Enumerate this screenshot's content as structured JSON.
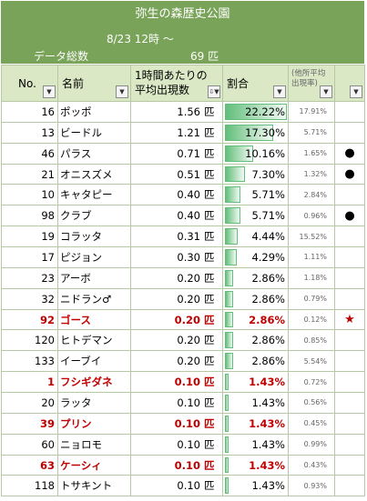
{
  "header": {
    "title": "弥生の森歴史公園",
    "date_line": "8/23 12時 ～",
    "total_label": "データ総数",
    "total_value": "69 匹"
  },
  "columns": {
    "no": "No.",
    "name": "名前",
    "avg_line1": "1時間あたりの",
    "avg_line2": "平均出現数",
    "ratio": "割合",
    "other_line1": "(他所平均",
    "other_line2": "出現率)"
  },
  "rows": [
    {
      "no": "16",
      "name": "ポッポ",
      "avg": "1.56",
      "unit": "匹",
      "ratio": "22.22%",
      "ratio_value": 22.22,
      "other": "17.91%",
      "mark": "",
      "highlight": false
    },
    {
      "no": "13",
      "name": "ビードル",
      "avg": "1.21",
      "unit": "匹",
      "ratio": "17.30%",
      "ratio_value": 17.3,
      "other": "5.71%",
      "mark": "",
      "highlight": false
    },
    {
      "no": "46",
      "name": "パラス",
      "avg": "0.71",
      "unit": "匹",
      "ratio": "10.16%",
      "ratio_value": 10.16,
      "other": "1.65%",
      "mark": "●",
      "highlight": false
    },
    {
      "no": "21",
      "name": "オニスズメ",
      "avg": "0.51",
      "unit": "匹",
      "ratio": "7.30%",
      "ratio_value": 7.3,
      "other": "1.32%",
      "mark": "●",
      "highlight": false
    },
    {
      "no": "10",
      "name": "キャタピー",
      "avg": "0.40",
      "unit": "匹",
      "ratio": "5.71%",
      "ratio_value": 5.71,
      "other": "2.84%",
      "mark": "",
      "highlight": false
    },
    {
      "no": "98",
      "name": "クラブ",
      "avg": "0.40",
      "unit": "匹",
      "ratio": "5.71%",
      "ratio_value": 5.71,
      "other": "0.96%",
      "mark": "●",
      "highlight": false
    },
    {
      "no": "19",
      "name": "コラッタ",
      "avg": "0.31",
      "unit": "匹",
      "ratio": "4.44%",
      "ratio_value": 4.44,
      "other": "15.52%",
      "mark": "",
      "highlight": false
    },
    {
      "no": "17",
      "name": "ピジョン",
      "avg": "0.30",
      "unit": "匹",
      "ratio": "4.29%",
      "ratio_value": 4.29,
      "other": "1.11%",
      "mark": "",
      "highlight": false
    },
    {
      "no": "23",
      "name": "アーボ",
      "avg": "0.20",
      "unit": "匹",
      "ratio": "2.86%",
      "ratio_value": 2.86,
      "other": "1.18%",
      "mark": "",
      "highlight": false
    },
    {
      "no": "32",
      "name": "ニドラン♂",
      "avg": "0.20",
      "unit": "匹",
      "ratio": "2.86%",
      "ratio_value": 2.86,
      "other": "0.79%",
      "mark": "",
      "highlight": false
    },
    {
      "no": "92",
      "name": "ゴース",
      "avg": "0.20",
      "unit": "匹",
      "ratio": "2.86%",
      "ratio_value": 2.86,
      "other": "0.12%",
      "mark": "★",
      "highlight": true
    },
    {
      "no": "120",
      "name": "ヒトデマン",
      "avg": "0.20",
      "unit": "匹",
      "ratio": "2.86%",
      "ratio_value": 2.86,
      "other": "0.85%",
      "mark": "",
      "highlight": false
    },
    {
      "no": "133",
      "name": "イーブイ",
      "avg": "0.20",
      "unit": "匹",
      "ratio": "2.86%",
      "ratio_value": 2.86,
      "other": "5.54%",
      "mark": "",
      "highlight": false
    },
    {
      "no": "1",
      "name": "フシギダネ",
      "avg": "0.10",
      "unit": "匹",
      "ratio": "1.43%",
      "ratio_value": 1.43,
      "other": "0.72%",
      "mark": "",
      "highlight": true
    },
    {
      "no": "20",
      "name": "ラッタ",
      "avg": "0.10",
      "unit": "匹",
      "ratio": "1.43%",
      "ratio_value": 1.43,
      "other": "0.56%",
      "mark": "",
      "highlight": false
    },
    {
      "no": "39",
      "name": "プリン",
      "avg": "0.10",
      "unit": "匹",
      "ratio": "1.43%",
      "ratio_value": 1.43,
      "other": "0.45%",
      "mark": "",
      "highlight": true
    },
    {
      "no": "60",
      "name": "ニョロモ",
      "avg": "0.10",
      "unit": "匹",
      "ratio": "1.43%",
      "ratio_value": 1.43,
      "other": "0.99%",
      "mark": "",
      "highlight": false
    },
    {
      "no": "63",
      "name": "ケーシィ",
      "avg": "0.10",
      "unit": "匹",
      "ratio": "1.43%",
      "ratio_value": 1.43,
      "other": "0.43%",
      "mark": "",
      "highlight": true
    },
    {
      "no": "118",
      "name": "トサキント",
      "avg": "0.10",
      "unit": "匹",
      "ratio": "1.43%",
      "ratio_value": 1.43,
      "other": "0.93%",
      "mark": "",
      "highlight": false
    }
  ],
  "ratio_scale_max": 22.22,
  "colors": {
    "header_band": "#7aa35a",
    "header_row": "#dbe8c6",
    "grid": "#b6c8a4",
    "databar": "#63be7b",
    "highlight_text": "#c00000"
  }
}
